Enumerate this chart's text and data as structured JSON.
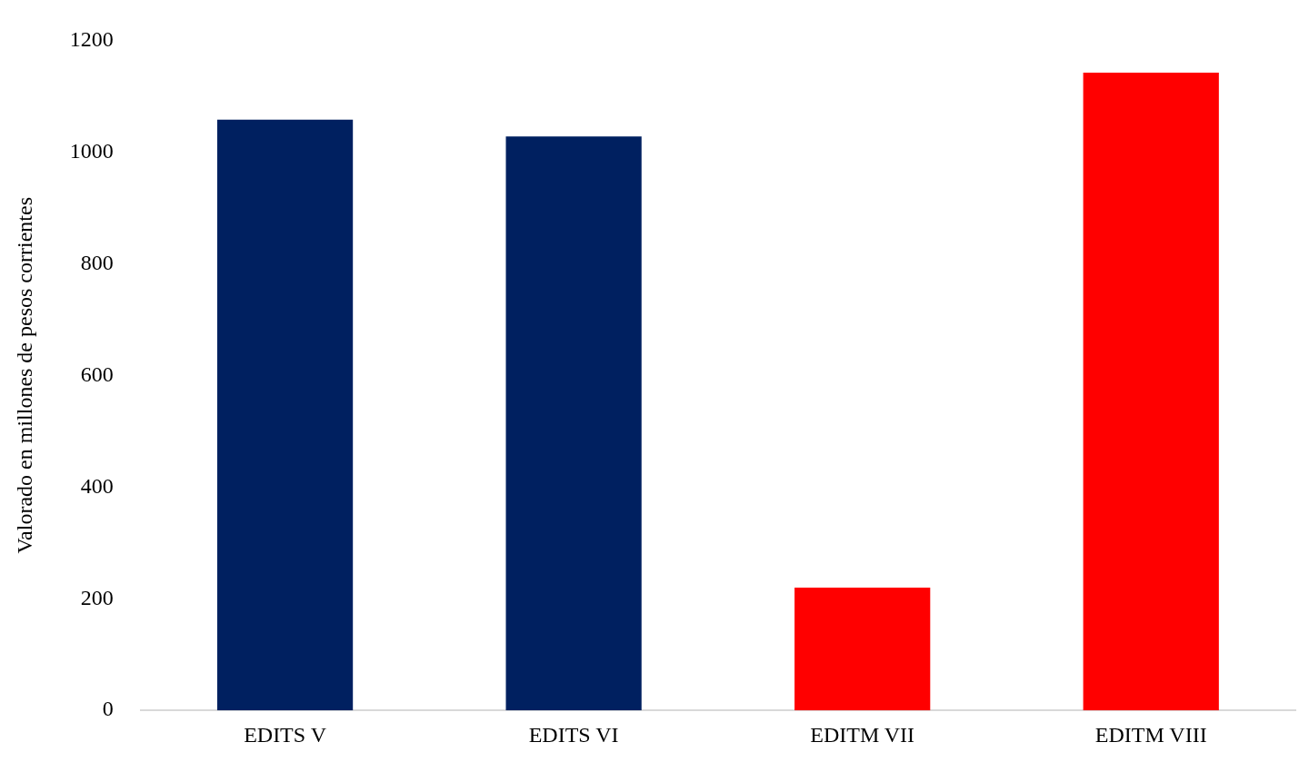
{
  "chart_data": {
    "type": "bar",
    "ylabel": "Valorado en millones de pesos corrientes",
    "categories": [
      "EDITS V",
      "EDITS VI",
      "EDITM VII",
      "EDITM VIII"
    ],
    "values": [
      1058,
      1028,
      220,
      1142
    ],
    "colors": [
      "#002060",
      "#002060",
      "#ff0000",
      "#ff0000"
    ],
    "ylim": [
      0,
      1200
    ],
    "yticks": [
      0,
      200,
      400,
      600,
      800,
      1000,
      1200
    ],
    "grid": false,
    "legend": false
  }
}
